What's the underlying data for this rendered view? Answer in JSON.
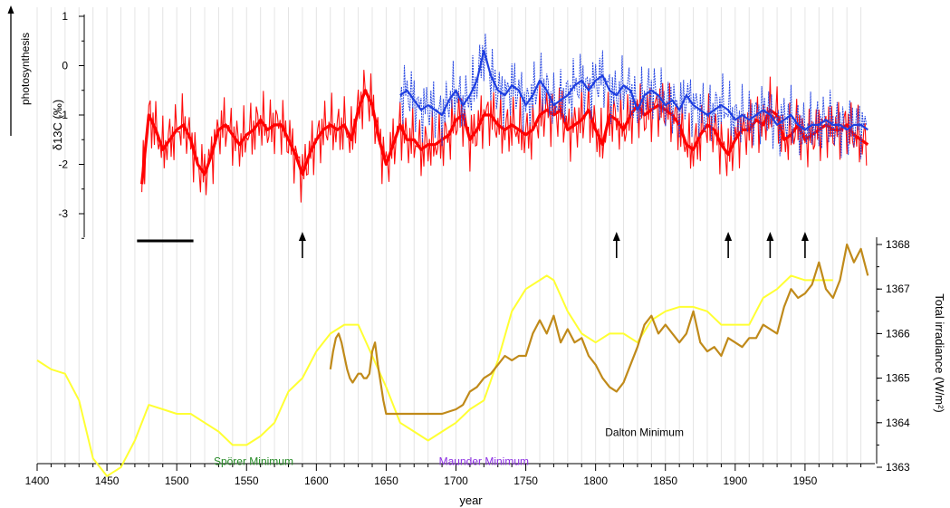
{
  "chart_data": [
    {
      "type": "line",
      "panel": "top",
      "ylabel": "δ13C (‰)",
      "side_label": "photosynthesis",
      "ylim": [
        -3.5,
        1
      ],
      "yticks": [
        1,
        0,
        -1,
        -2,
        -3
      ],
      "colors": {
        "series_a": "#ff0000",
        "series_b": "#1f3fe0"
      },
      "series": [
        {
          "color": "#ff0000",
          "x": [
            1475,
            1480,
            1485,
            1490,
            1495,
            1500,
            1505,
            1510,
            1515,
            1520,
            1525,
            1530,
            1535,
            1540,
            1545,
            1550,
            1555,
            1560,
            1565,
            1570,
            1575,
            1580,
            1585,
            1590,
            1595,
            1600,
            1605,
            1610,
            1615,
            1620,
            1625,
            1630,
            1635,
            1640,
            1645,
            1650,
            1655,
            1660,
            1665,
            1670,
            1675,
            1680,
            1685,
            1690,
            1695,
            1700,
            1705,
            1710,
            1715,
            1720,
            1725,
            1730,
            1735,
            1740,
            1745,
            1750,
            1755,
            1760,
            1765,
            1770,
            1775,
            1780,
            1785,
            1790,
            1795,
            1800,
            1805,
            1810,
            1815,
            1820,
            1825,
            1830,
            1835,
            1840,
            1845,
            1850,
            1855,
            1860,
            1865,
            1870,
            1875,
            1880,
            1885,
            1890,
            1895,
            1900,
            1905,
            1910,
            1915,
            1920,
            1925,
            1930,
            1935,
            1940,
            1945,
            1950,
            1955,
            1960,
            1965,
            1970,
            1975,
            1980,
            1985,
            1990,
            1995
          ],
          "y": [
            -2.4,
            -1.0,
            -1.3,
            -1.7,
            -1.5,
            -1.3,
            -1.2,
            -1.5,
            -2.0,
            -2.2,
            -1.8,
            -1.3,
            -1.2,
            -1.4,
            -1.6,
            -1.4,
            -1.3,
            -1.1,
            -1.3,
            -1.2,
            -1.2,
            -1.5,
            -1.8,
            -2.2,
            -1.8,
            -1.5,
            -1.3,
            -1.2,
            -1.3,
            -1.2,
            -1.5,
            -0.9,
            -0.5,
            -0.8,
            -1.5,
            -2.0,
            -1.6,
            -1.2,
            -1.5,
            -1.5,
            -1.7,
            -1.6,
            -1.6,
            -1.5,
            -1.4,
            -1.1,
            -1.0,
            -1.5,
            -1.3,
            -1.0,
            -1.0,
            -1.2,
            -1.3,
            -1.2,
            -1.3,
            -1.4,
            -1.3,
            -1.0,
            -0.9,
            -1.0,
            -0.9,
            -1.3,
            -1.2,
            -1.1,
            -0.9,
            -1.3,
            -1.6,
            -1.0,
            -1.1,
            -1.3,
            -1.0,
            -0.8,
            -1.0,
            -0.9,
            -0.8,
            -0.9,
            -1.0,
            -1.2,
            -1.6,
            -1.7,
            -1.4,
            -1.2,
            -1.3,
            -1.6,
            -1.8,
            -1.5,
            -1.3,
            -1.3,
            -1.1,
            -1.2,
            -0.9,
            -1.0,
            -1.5,
            -1.4,
            -1.2,
            -1.5,
            -1.4,
            -1.3,
            -1.2,
            -1.3,
            -1.3,
            -1.2,
            -1.4,
            -1.5,
            -1.6
          ]
        },
        {
          "color": "#1f3fe0",
          "x": [
            1660,
            1665,
            1670,
            1675,
            1680,
            1685,
            1690,
            1695,
            1700,
            1705,
            1710,
            1715,
            1720,
            1725,
            1730,
            1735,
            1740,
            1745,
            1750,
            1755,
            1760,
            1765,
            1770,
            1775,
            1780,
            1785,
            1790,
            1795,
            1800,
            1805,
            1810,
            1815,
            1820,
            1825,
            1830,
            1835,
            1840,
            1845,
            1850,
            1855,
            1860,
            1865,
            1870,
            1875,
            1880,
            1885,
            1890,
            1895,
            1900,
            1905,
            1910,
            1915,
            1920,
            1925,
            1930,
            1935,
            1940,
            1945,
            1950,
            1955,
            1960,
            1965,
            1970,
            1975,
            1980,
            1985,
            1990,
            1995
          ],
          "y": [
            -0.6,
            -0.5,
            -0.7,
            -0.9,
            -0.8,
            -0.9,
            -1.0,
            -0.7,
            -0.5,
            -0.8,
            -0.6,
            -0.3,
            0.3,
            -0.2,
            -0.5,
            -0.6,
            -0.4,
            -0.5,
            -0.8,
            -0.6,
            -0.3,
            -0.5,
            -0.8,
            -0.7,
            -0.6,
            -0.4,
            -0.3,
            -0.5,
            -0.3,
            -0.2,
            -0.5,
            -0.6,
            -0.4,
            -0.5,
            -0.9,
            -0.6,
            -0.5,
            -0.6,
            -0.8,
            -0.7,
            -0.9,
            -0.6,
            -0.8,
            -0.9,
            -1.0,
            -0.9,
            -0.8,
            -0.9,
            -1.1,
            -1.0,
            -1.1,
            -1.0,
            -0.9,
            -1.0,
            -1.2,
            -1.1,
            -1.0,
            -1.2,
            -1.3,
            -1.2,
            -1.2,
            -1.1,
            -1.2,
            -1.2,
            -1.3,
            -1.2,
            -1.2,
            -1.3
          ]
        }
      ],
      "markers": {
        "arrows_at_year": [
          1590,
          1815,
          1895,
          1925,
          1950
        ],
        "bar_start_year": 1480,
        "bar_end_year": 1510
      }
    },
    {
      "type": "line",
      "panel": "bottom",
      "xlabel": "year",
      "ylabel": "Total irradiance (W/m²)",
      "xlim": [
        1400,
        2000
      ],
      "xticks": [
        1400,
        1450,
        1500,
        1550,
        1600,
        1650,
        1700,
        1750,
        1800,
        1850,
        1900,
        1950
      ],
      "ylim": [
        1362.7,
        1368.2
      ],
      "yticks": [
        1368,
        1367,
        1366,
        1365,
        1364,
        1363
      ],
      "grid": "vertical every 10 years",
      "series": [
        {
          "color": "#ffff33",
          "x": [
            1400,
            1410,
            1420,
            1430,
            1440,
            1450,
            1460,
            1470,
            1480,
            1490,
            1500,
            1510,
            1520,
            1530,
            1540,
            1550,
            1560,
            1570,
            1580,
            1590,
            1600,
            1610,
            1620,
            1630,
            1640,
            1650,
            1660,
            1670,
            1680,
            1690,
            1700,
            1710,
            1720,
            1730,
            1740,
            1750,
            1760,
            1765,
            1770,
            1780,
            1790,
            1800,
            1810,
            1820,
            1830,
            1840,
            1850,
            1860,
            1870,
            1880,
            1890,
            1900,
            1910,
            1920,
            1930,
            1940,
            1950,
            1960,
            1970
          ],
          "y": [
            1365.4,
            1365.2,
            1365.1,
            1364.5,
            1363.2,
            1362.8,
            1363.0,
            1363.6,
            1364.4,
            1364.3,
            1364.2,
            1364.2,
            1364.0,
            1363.8,
            1363.5,
            1363.5,
            1363.7,
            1364.0,
            1364.7,
            1365.0,
            1365.6,
            1366.0,
            1366.2,
            1366.2,
            1365.5,
            1364.8,
            1364.0,
            1363.8,
            1363.6,
            1363.8,
            1364.0,
            1364.3,
            1364.5,
            1365.4,
            1366.5,
            1367.0,
            1367.2,
            1367.3,
            1367.2,
            1366.5,
            1366.0,
            1365.8,
            1366.0,
            1366.0,
            1365.8,
            1366.3,
            1366.5,
            1366.6,
            1366.6,
            1366.5,
            1366.2,
            1366.2,
            1366.2,
            1366.8,
            1367.0,
            1367.3,
            1367.2,
            1367.2,
            1367.2
          ]
        },
        {
          "color": "#c08a1a",
          "x": [
            1610,
            1612,
            1614,
            1616,
            1618,
            1620,
            1622,
            1624,
            1626,
            1628,
            1630,
            1632,
            1634,
            1636,
            1638,
            1640,
            1642,
            1644,
            1646,
            1648,
            1650,
            1660,
            1670,
            1680,
            1690,
            1700,
            1705,
            1710,
            1715,
            1720,
            1725,
            1730,
            1735,
            1740,
            1745,
            1750,
            1755,
            1760,
            1765,
            1770,
            1775,
            1780,
            1785,
            1790,
            1795,
            1800,
            1805,
            1810,
            1815,
            1820,
            1825,
            1830,
            1835,
            1840,
            1845,
            1850,
            1855,
            1860,
            1865,
            1870,
            1875,
            1880,
            1885,
            1890,
            1895,
            1900,
            1905,
            1910,
            1915,
            1920,
            1925,
            1930,
            1935,
            1940,
            1945,
            1950,
            1955,
            1960,
            1965,
            1970,
            1975,
            1980,
            1985,
            1990,
            1995
          ],
          "y": [
            1365.2,
            1365.6,
            1365.9,
            1366.0,
            1365.8,
            1365.5,
            1365.2,
            1365.0,
            1364.9,
            1365.0,
            1365.1,
            1365.1,
            1365.0,
            1365.0,
            1365.1,
            1365.6,
            1365.8,
            1365.3,
            1364.9,
            1364.5,
            1364.2,
            1364.2,
            1364.2,
            1364.2,
            1364.2,
            1364.3,
            1364.4,
            1364.7,
            1364.8,
            1365.0,
            1365.1,
            1365.3,
            1365.5,
            1365.4,
            1365.5,
            1365.5,
            1366.0,
            1366.3,
            1366.0,
            1366.4,
            1365.8,
            1366.1,
            1365.8,
            1365.9,
            1365.5,
            1365.3,
            1365.0,
            1364.8,
            1364.7,
            1364.9,
            1365.3,
            1365.7,
            1366.2,
            1366.4,
            1366.0,
            1366.2,
            1366.0,
            1365.8,
            1366.0,
            1366.5,
            1365.8,
            1365.6,
            1365.7,
            1365.5,
            1365.9,
            1365.8,
            1365.7,
            1365.9,
            1365.9,
            1366.2,
            1366.1,
            1366.0,
            1366.6,
            1367.0,
            1366.8,
            1366.9,
            1367.1,
            1367.6,
            1367.0,
            1366.8,
            1367.2,
            1368.0,
            1367.6,
            1367.9,
            1367.3
          ]
        }
      ],
      "annotations": [
        {
          "text": "Spörer Minimum",
          "x": 1555,
          "y": 1363.05,
          "color": "#228822"
        },
        {
          "text": "Maunder Minimum",
          "x": 1720,
          "y": 1363.05,
          "color": "#8a2be2"
        },
        {
          "text": "Dalton Minimum",
          "x": 1835,
          "y": 1363.7,
          "color": "#000000"
        }
      ]
    }
  ]
}
